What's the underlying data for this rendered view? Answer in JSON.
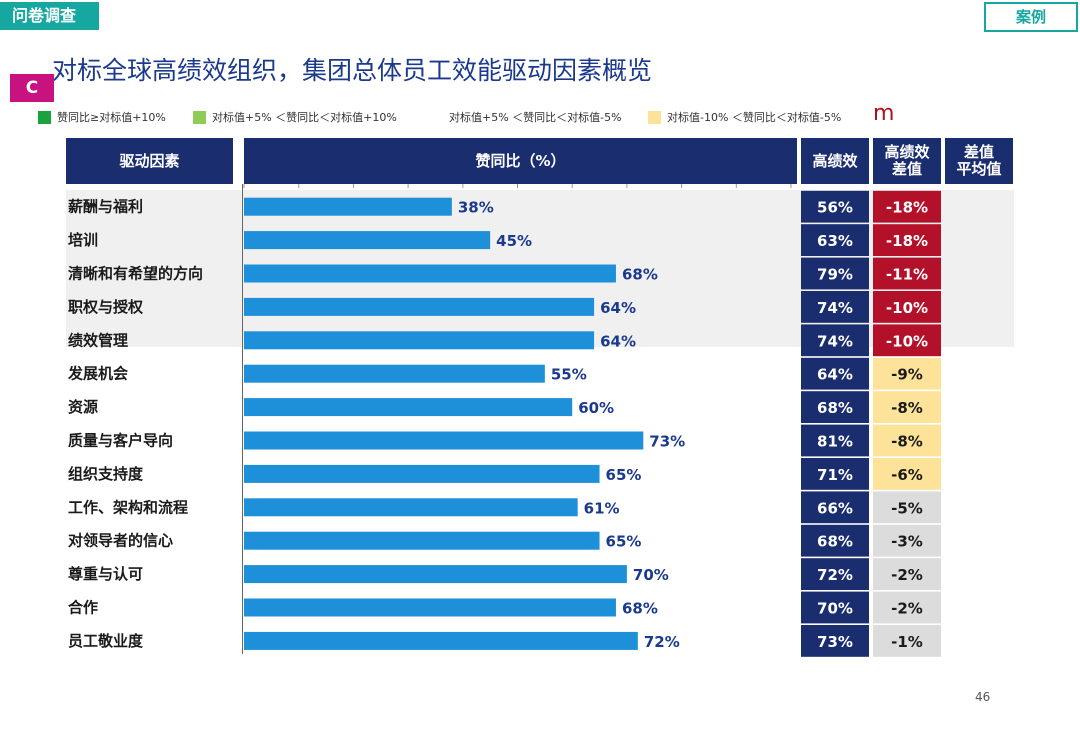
{
  "header": {
    "section_tag": "问卷调查",
    "case_tag": "案例",
    "title": "对标全球高绩效组织，集团总体员工效能驱动因素概览",
    "badge": "C"
  },
  "legend": {
    "items": [
      {
        "label": "赞同比≥对标值+10%",
        "color": "#1aa33d"
      },
      {
        "label": "对标值+5% ＜赞同比＜对标值+10%",
        "color": "#8fcc55"
      },
      {
        "label": "对标值+5% ＜赞同比＜对标值-5%",
        "color": "#ffffff"
      },
      {
        "label": "对标值-10% ＜赞同比＜对标值-5%",
        "color": "#fde39a"
      }
    ],
    "extra": "m"
  },
  "columns": {
    "factor": "驱动因素",
    "agree": "赞同比（%）",
    "high_perf": "高绩效",
    "gap": "高绩效\n差值",
    "gap_avg": "差值\n平均值"
  },
  "page_number": "46",
  "chart_data": {
    "type": "bar",
    "orientation": "horizontal",
    "categories": [
      "薪酬与福利",
      "培训",
      "清晰和有希望的方向",
      "职权与授权",
      "绩效管理",
      "发展机会",
      "资源",
      "质量与客户导向",
      "组织支持度",
      "工作、架构和流程",
      "对领导者的信心",
      "尊重与认可",
      "合作",
      "员工敬业度"
    ],
    "values": [
      38,
      45,
      68,
      64,
      64,
      55,
      60,
      73,
      65,
      61,
      65,
      70,
      68,
      72
    ],
    "value_labels": [
      "38%",
      "45%",
      "68%",
      "64%",
      "64%",
      "55%",
      "60%",
      "73%",
      "65%",
      "61%",
      "65%",
      "70%",
      "68%",
      "72%"
    ],
    "xlim": [
      0,
      100
    ],
    "high_performance": [
      "56%",
      "63%",
      "79%",
      "74%",
      "74%",
      "64%",
      "68%",
      "81%",
      "71%",
      "66%",
      "68%",
      "72%",
      "70%",
      "73%"
    ],
    "gap": [
      "-18%",
      "-18%",
      "-11%",
      "-10%",
      "-10%",
      "-9%",
      "-8%",
      "-8%",
      "-6%",
      "-5%",
      "-3%",
      "-2%",
      "-2%",
      "-1%"
    ],
    "gap_levels": [
      "red",
      "red",
      "red",
      "red",
      "red",
      "yellow",
      "yellow",
      "yellow",
      "yellow",
      "gray",
      "gray",
      "gray",
      "gray",
      "gray"
    ],
    "colors": {
      "bar": "#1e90d9",
      "label": "#1b3a8c",
      "high_perf_bg": "#1a2d6e",
      "red": "#b3102a",
      "yellow": "#fde39a",
      "gray": "#dcdcdc"
    }
  }
}
